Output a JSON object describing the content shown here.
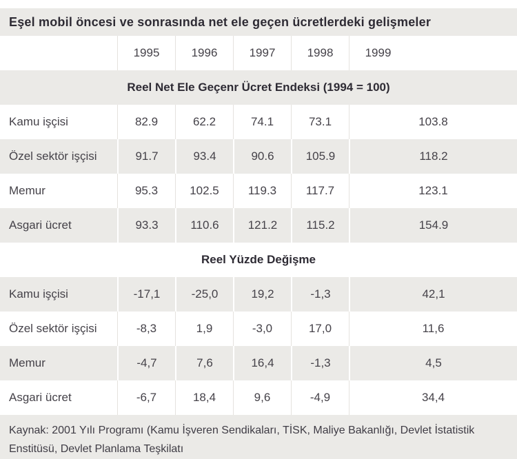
{
  "chart_data": {
    "type": "table",
    "title": "Eşel mobil öncesi ve sonrasında net ele geçen ücretlerdeki gelişmeler",
    "columns": [
      "1995",
      "1996",
      "1997",
      "1998",
      "1999"
    ],
    "sections": [
      {
        "header": "Reel Net Ele Geçenr Ücret Endeksi (1994 = 100)",
        "rows": [
          {
            "label": "Kamu işçisi",
            "values": [
              "82.9",
              "62.2",
              "74.1",
              "73.1",
              "103.8"
            ]
          },
          {
            "label": "Özel sektör işçisi",
            "values": [
              "91.7",
              "93.4",
              "90.6",
              "105.9",
              "118.2"
            ]
          },
          {
            "label": "Memur",
            "values": [
              "95.3",
              "102.5",
              "119.3",
              "117.7",
              "123.1"
            ]
          },
          {
            "label": "Asgari ücret",
            "values": [
              "93.3",
              "110.6",
              "121.2",
              "115.2",
              "154.9"
            ]
          }
        ]
      },
      {
        "header": "Reel Yüzde Değişme",
        "rows": [
          {
            "label": "Kamu işçisi",
            "values": [
              "-17,1",
              "-25,0",
              "19,2",
              "-1,3",
              "42,1"
            ]
          },
          {
            "label": "Özel sektör işçisi",
            "values": [
              "-8,3",
              "1,9",
              "-3,0",
              "17,0",
              "11,6"
            ]
          },
          {
            "label": "Memur",
            "values": [
              "-4,7",
              "7,6",
              "16,4",
              "-1,3",
              "4,5"
            ]
          },
          {
            "label": "Asgari ücret",
            "values": [
              "-6,7",
              "18,4",
              "9,6",
              "-4,9",
              "34,4"
            ]
          }
        ]
      }
    ],
    "source_lines": [
      "Kaynak: 2001 Yılı Programı (Kamu İşveren Sendikaları, TİSK, Maliye Bakanlığı, Devlet İstatistik",
      "Enstitüsü, Devlet Planlama Teşkilatı"
    ],
    "colors": {
      "stripe": "#EBEAE7",
      "heading_text": "#2E2B34",
      "body_text": "#454249",
      "divider_on_white": "#E5E2DE",
      "divider_on_gray": "#FFFFFF",
      "background": "#FFFFFF"
    }
  }
}
